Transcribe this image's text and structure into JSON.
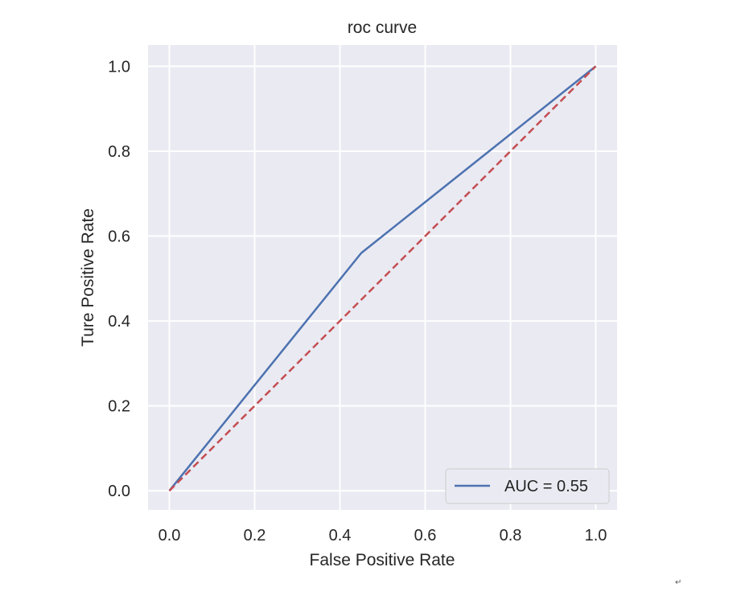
{
  "chart_data": {
    "type": "line",
    "title": "roc curve",
    "xlabel": "False Positive Rate",
    "ylabel": "Ture Positive Rate",
    "xlim": [
      -0.05,
      1.05
    ],
    "ylim": [
      -0.045,
      1.05
    ],
    "xticks": [
      "0.0",
      "0.2",
      "0.4",
      "0.6",
      "0.8",
      "1.0"
    ],
    "yticks": [
      "0.0",
      "0.2",
      "0.4",
      "0.6",
      "0.8",
      "1.0"
    ],
    "tick_values": [
      0.0,
      0.2,
      0.4,
      0.6,
      0.8,
      1.0
    ],
    "grid": true,
    "legend_position": "lower-right",
    "series": [
      {
        "name": "AUC = 0.55",
        "style": "solid",
        "color": "#4c72b0",
        "x": [
          0.0,
          0.45,
          1.0
        ],
        "y": [
          0.0,
          0.56,
          1.0
        ]
      },
      {
        "name": "",
        "style": "dashed",
        "color": "#c44e52",
        "x": [
          0.0,
          1.0
        ],
        "y": [
          0.0,
          1.0
        ]
      }
    ],
    "colors": {
      "plot_background": "#eaeaf2",
      "grid": "#ffffff",
      "legend_border": "#cccccc"
    }
  },
  "corner_mark": "↵"
}
